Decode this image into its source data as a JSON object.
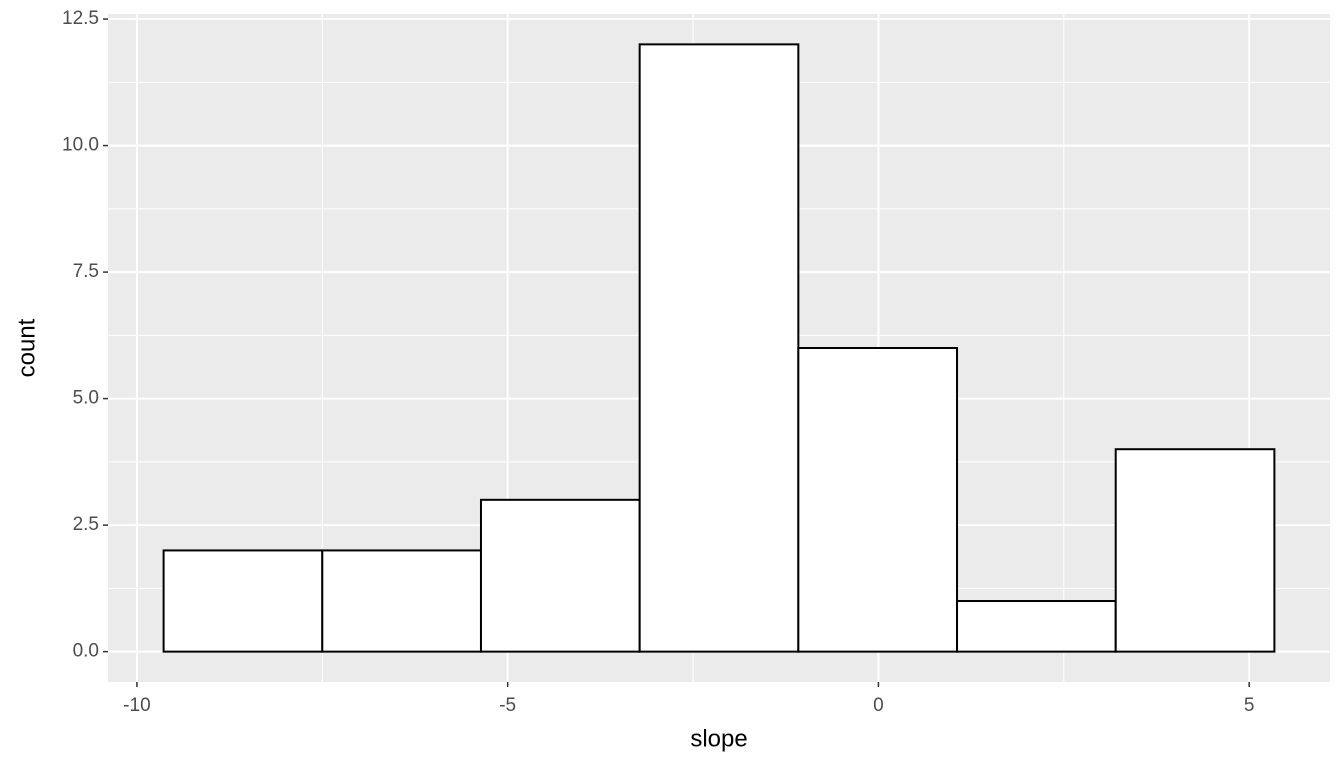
{
  "chart_data": {
    "type": "histogram",
    "x_label": "slope",
    "y_label": "count",
    "bins": [
      -9.64,
      -7.5,
      -5.36,
      -3.22,
      -1.08,
      1.06,
      3.2,
      5.34
    ],
    "values": [
      2,
      2,
      3,
      12,
      6,
      1,
      4
    ],
    "color": "#ffffff",
    "edge_color": "#000000",
    "xlim": [
      -10.39,
      6.09
    ],
    "xticks": [
      -10,
      -5,
      0,
      5
    ],
    "ylim": [
      -0.6,
      12.6
    ],
    "yticks": [
      {
        "value": 0,
        "label": "0.0"
      },
      {
        "value": 2.5,
        "label": "2.5"
      },
      {
        "value": 5,
        "label": "5.0"
      },
      {
        "value": 7.5,
        "label": "7.5"
      },
      {
        "value": 10,
        "label": "10.0"
      },
      {
        "value": 12.5,
        "label": "12.5"
      }
    ],
    "grid": true,
    "panel_color": "#ebebeb"
  }
}
